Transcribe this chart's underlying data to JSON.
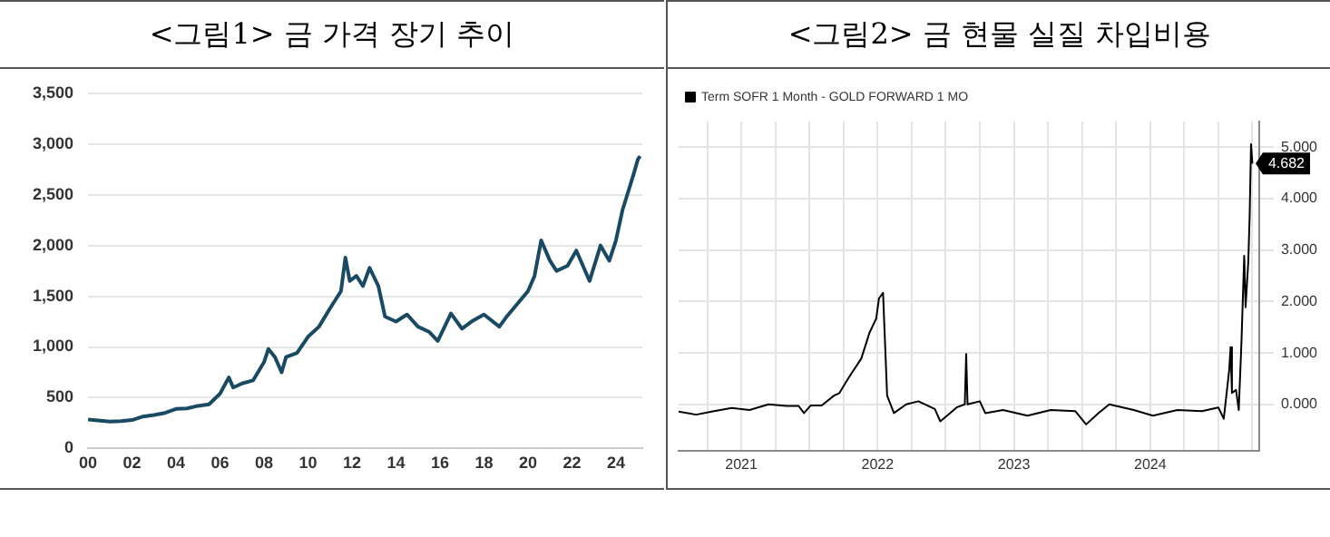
{
  "chart_data": [
    {
      "type": "line",
      "title": "<그림1> 금 가격 장기 추이",
      "xlim": [
        2000,
        2025.2
      ],
      "xticks": [
        {
          "value": 2000,
          "label": "00"
        },
        {
          "value": 2002,
          "label": "02"
        },
        {
          "value": 2004,
          "label": "04"
        },
        {
          "value": 2006,
          "label": "06"
        },
        {
          "value": 2008,
          "label": "08"
        },
        {
          "value": 2010,
          "label": "10"
        },
        {
          "value": 2012,
          "label": "12"
        },
        {
          "value": 2014,
          "label": "14"
        },
        {
          "value": 2016,
          "label": "16"
        },
        {
          "value": 2018,
          "label": "18"
        },
        {
          "value": 2020,
          "label": "20"
        },
        {
          "value": 2022,
          "label": "22"
        },
        {
          "value": 2024,
          "label": "24"
        }
      ],
      "ylim": [
        0,
        3500
      ],
      "yticks": [
        {
          "value": 0,
          "label": "0"
        },
        {
          "value": 500,
          "label": "500"
        },
        {
          "value": 1000,
          "label": "1,000"
        },
        {
          "value": 1500,
          "label": "1,500"
        },
        {
          "value": 2000,
          "label": "2,000"
        },
        {
          "value": 2500,
          "label": "2,500"
        },
        {
          "value": 3000,
          "label": "3,000"
        },
        {
          "value": 3500,
          "label": "3,500"
        }
      ],
      "grid": "y",
      "series": [
        {
          "color": "#1a4a63",
          "x": [
            2000,
            2001,
            2001.5,
            2002,
            2002.5,
            2003,
            2003.5,
            2004,
            2004.5,
            2005,
            2005.5,
            2006,
            2006.4,
            2006.6,
            2007,
            2007.5,
            2008,
            2008.2,
            2008.5,
            2008.8,
            2009,
            2009.5,
            2010,
            2010.5,
            2011,
            2011.5,
            2011.7,
            2011.9,
            2012.2,
            2012.5,
            2012.8,
            2013.2,
            2013.5,
            2014,
            2014.5,
            2015,
            2015.5,
            2015.9,
            2016.5,
            2017,
            2017.5,
            2018,
            2018.7,
            2019,
            2019.5,
            2020,
            2020.3,
            2020.6,
            2021,
            2021.3,
            2021.8,
            2022.2,
            2022.8,
            2023.3,
            2023.7,
            2024,
            2024.3,
            2024.8,
            2025,
            2025.1
          ],
          "values": [
            285,
            265,
            270,
            280,
            315,
            330,
            350,
            390,
            395,
            420,
            435,
            540,
            700,
            600,
            640,
            670,
            850,
            980,
            900,
            750,
            900,
            940,
            1100,
            1200,
            1380,
            1550,
            1880,
            1650,
            1700,
            1600,
            1780,
            1600,
            1300,
            1250,
            1320,
            1200,
            1150,
            1060,
            1330,
            1180,
            1260,
            1320,
            1200,
            1290,
            1420,
            1550,
            1700,
            2050,
            1850,
            1750,
            1800,
            1950,
            1650,
            2000,
            1850,
            2050,
            2350,
            2700,
            2850,
            2880
          ]
        }
      ]
    },
    {
      "type": "line",
      "title": "<그림2> 금 현물 실질 차입비용",
      "legend": "top left",
      "grid": true,
      "xlim": [
        2021.04,
        2025.3
      ],
      "xticks": [
        {
          "value": 2021.25,
          "label": null
        },
        {
          "value": 2021.5,
          "label": "2021"
        },
        {
          "value": 2021.75,
          "label": null
        },
        {
          "value": 2022,
          "label": null
        },
        {
          "value": 2022.25,
          "label": null
        },
        {
          "value": 2022.5,
          "label": "2022"
        },
        {
          "value": 2022.75,
          "label": null
        },
        {
          "value": 2023,
          "label": null
        },
        {
          "value": 2023.25,
          "label": null
        },
        {
          "value": 2023.5,
          "label": "2023"
        },
        {
          "value": 2023.75,
          "label": null
        },
        {
          "value": 2024,
          "label": null
        },
        {
          "value": 2024.25,
          "label": null
        },
        {
          "value": 2024.5,
          "label": "2024"
        },
        {
          "value": 2024.75,
          "label": null
        },
        {
          "value": 2025,
          "label": null
        },
        {
          "value": 2025.25,
          "label": null
        }
      ],
      "y2lim": [
        -0.9,
        5.5
      ],
      "y2ticks": [
        {
          "value": 0,
          "label": "0.000"
        },
        {
          "value": 1,
          "label": "1.000"
        },
        {
          "value": 2,
          "label": "2.000"
        },
        {
          "value": 3,
          "label": "3.000"
        },
        {
          "value": 4,
          "label": "4.000"
        },
        {
          "value": 5,
          "label": "5.000"
        }
      ],
      "annotations": [
        "4.682"
      ],
      "series": [
        {
          "name": "Term SOFR 1 Month - GOLD FORWARD 1 MO",
          "color": "#000000",
          "axis": "y2",
          "x": [
            2021.04,
            2021.17,
            2021.3,
            2021.43,
            2021.56,
            2021.7,
            2021.83,
            2021.92,
            2021.96,
            2022.01,
            2022.09,
            2022.18,
            2022.22,
            2022.27,
            2022.31,
            2022.38,
            2022.42,
            2022.44,
            2022.49,
            2022.51,
            2022.54,
            2022.57,
            2022.62,
            2022.71,
            2022.8,
            2022.92,
            2022.96,
            2023.01,
            2023.08,
            2023.14,
            2023.15,
            2023.16,
            2023.25,
            2023.29,
            2023.42,
            2023.6,
            2023.77,
            2023.95,
            2024.03,
            2024.12,
            2024.2,
            2024.38,
            2024.52,
            2024.7,
            2024.88,
            2025.0,
            2025.04,
            2025.08,
            2025.09,
            2025.1,
            2025.13,
            2025.15,
            2025.17,
            2025.19,
            2025.2,
            2025.22,
            2025.23,
            2025.24,
            2025.25
          ],
          "values": [
            -0.14,
            -0.2,
            -0.13,
            -0.07,
            -0.11,
            0,
            -0.03,
            -0.03,
            -0.17,
            -0.02,
            -0.02,
            0.17,
            0.22,
            0.44,
            0.61,
            0.89,
            1.22,
            1.39,
            1.67,
            2.06,
            2.17,
            0.17,
            -0.17,
            0,
            0.06,
            -0.09,
            -0.33,
            -0.22,
            -0.06,
            0,
            0.98,
            0,
            0.06,
            -0.17,
            -0.11,
            -0.22,
            -0.11,
            -0.13,
            -0.39,
            -0.17,
            0,
            -0.11,
            -0.22,
            -0.11,
            -0.13,
            -0.06,
            -0.28,
            0.67,
            1.11,
            0.22,
            0.28,
            -0.11,
            1.22,
            2.89,
            1.89,
            2.78,
            3.67,
            5.06,
            4.682
          ]
        }
      ]
    }
  ]
}
